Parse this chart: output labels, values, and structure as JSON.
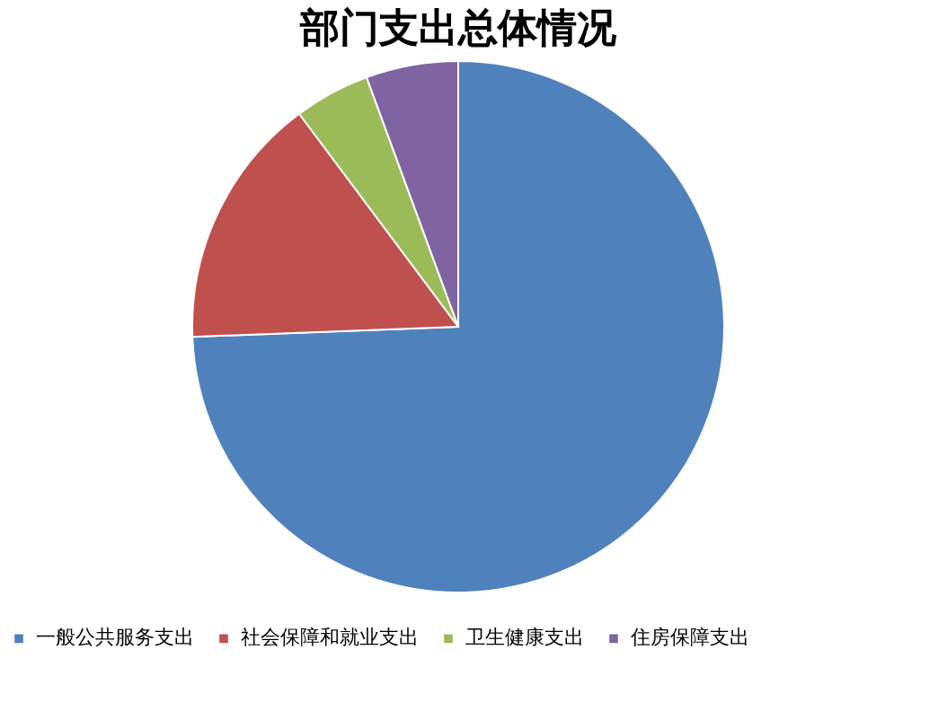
{
  "chart_data": {
    "type": "pie",
    "title": "部门支出总体情况",
    "categories": [
      "一般公共服务支出",
      "社会保障和就业支出",
      "卫生健康支出",
      "住房保障支出"
    ],
    "values": [
      74.4,
      15.4,
      4.6,
      5.6
    ],
    "colors": [
      "#4f81bd",
      "#c0504d",
      "#9bbb59",
      "#8064a2"
    ],
    "legend": "bottom"
  }
}
